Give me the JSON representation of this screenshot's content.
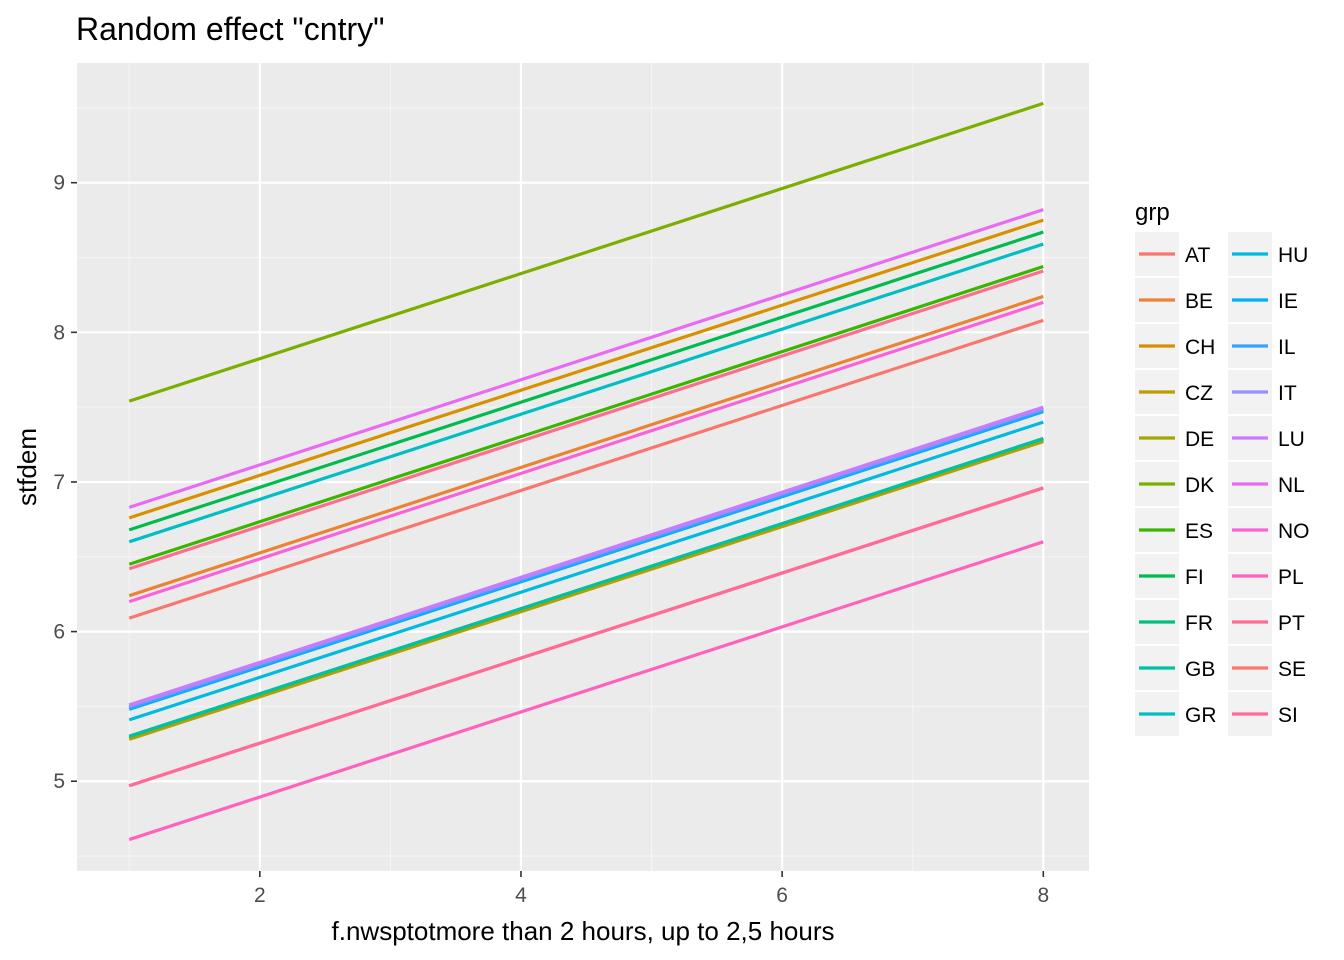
{
  "chart_data": {
    "type": "line",
    "title": "Random effect \"cntry\"",
    "xlabel": "f.nwsptotmore than 2 hours, up to 2,5 hours",
    "ylabel": "stfdem",
    "xlim": [
      0.6,
      8.35
    ],
    "ylim": [
      4.4,
      9.8
    ],
    "x_ticks": [
      2,
      4,
      6,
      8
    ],
    "x_tick_labels": [
      "2",
      "4",
      "6",
      "8"
    ],
    "y_ticks": [
      5,
      6,
      7,
      8,
      9
    ],
    "y_tick_labels": [
      "5",
      "6",
      "7",
      "8",
      "9"
    ],
    "grid": true,
    "legend": {
      "title": "grp",
      "placement": "right",
      "columns": 2
    },
    "x": [
      1,
      8
    ],
    "series": [
      {
        "name": "AT",
        "color": "#F8766D",
        "values": [
          6.09,
          8.08
        ]
      },
      {
        "name": "BE",
        "color": "#EB8335",
        "values": [
          6.24,
          8.24
        ]
      },
      {
        "name": "CH",
        "color": "#D89000",
        "values": [
          6.76,
          8.75
        ]
      },
      {
        "name": "CZ",
        "color": "#C09B00",
        "values": [
          5.28,
          7.27
        ]
      },
      {
        "name": "DE",
        "color": "#A3A500",
        "values": [
          5.29,
          7.28
        ]
      },
      {
        "name": "DK",
        "color": "#7CAE00",
        "values": [
          7.54,
          9.53
        ]
      },
      {
        "name": "ES",
        "color": "#39B600",
        "values": [
          6.45,
          8.44
        ]
      },
      {
        "name": "FI",
        "color": "#00BB4E",
        "values": [
          6.68,
          8.67
        ]
      },
      {
        "name": "FR",
        "color": "#00BF7D",
        "values": [
          5.3,
          7.29
        ]
      },
      {
        "name": "GB",
        "color": "#00C1A3",
        "values": [
          5.3,
          7.29
        ]
      },
      {
        "name": "GR",
        "color": "#00BFC4",
        "values": [
          6.6,
          8.59
        ]
      },
      {
        "name": "HU",
        "color": "#00BAE0",
        "values": [
          5.41,
          7.4
        ]
      },
      {
        "name": "IE",
        "color": "#00B0F6",
        "values": [
          5.48,
          7.47
        ]
      },
      {
        "name": "IL",
        "color": "#35A2FF",
        "values": [
          5.49,
          7.48
        ]
      },
      {
        "name": "IT",
        "color": "#9590FF",
        "values": [
          5.5,
          7.49
        ]
      },
      {
        "name": "LU",
        "color": "#C77CFF",
        "values": [
          5.51,
          7.5
        ]
      },
      {
        "name": "NL",
        "color": "#E76BF3",
        "values": [
          6.83,
          8.82
        ]
      },
      {
        "name": "NO",
        "color": "#FA62DB",
        "values": [
          6.2,
          8.2
        ]
      },
      {
        "name": "PL",
        "color": "#FF62BC",
        "values": [
          4.61,
          6.6
        ]
      },
      {
        "name": "PT",
        "color": "#FF6C91",
        "values": [
          6.42,
          8.41
        ]
      },
      {
        "name": "SE",
        "color": "#F8766D",
        "values": [
          4.97,
          6.96
        ]
      },
      {
        "name": "SI",
        "color": "#FF6A98",
        "values": [
          4.97,
          6.96
        ]
      }
    ]
  }
}
